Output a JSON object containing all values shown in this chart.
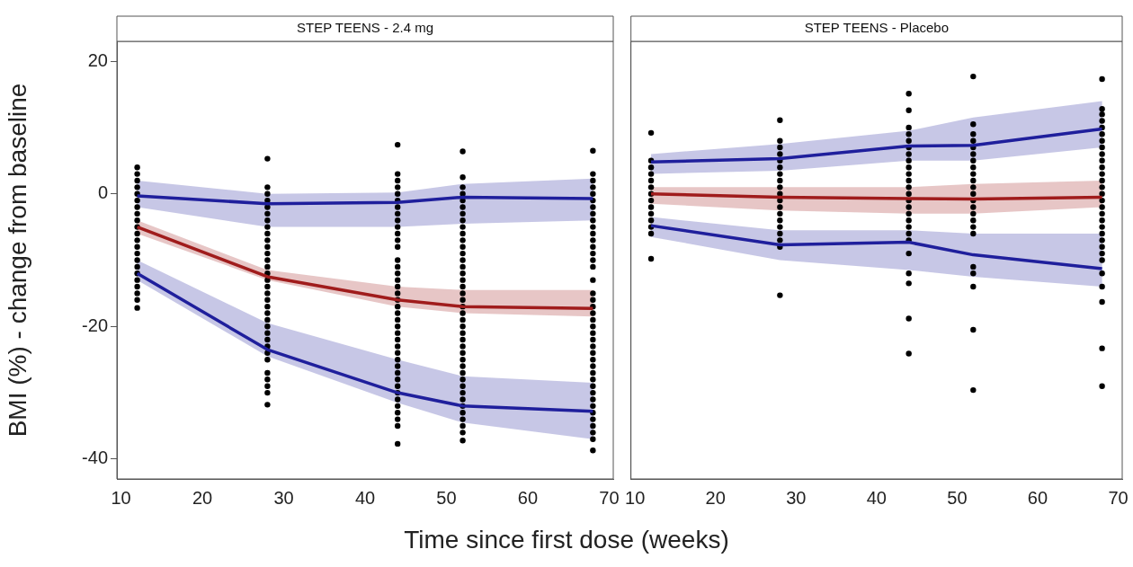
{
  "chart_data": [
    {
      "type": "line",
      "title": "STEP TEENS - 2.4 mg",
      "xlabel": "Time since first dose (weeks)",
      "ylabel": "BMI (%) - change from baseline",
      "xlim": [
        9.5,
        70.5
      ],
      "xticks": [
        10,
        20,
        30,
        40,
        50,
        60,
        70
      ],
      "ylim": [
        -43,
        23
      ],
      "yticks": [
        -40,
        -20,
        0,
        20
      ],
      "grid": false,
      "legend": false,
      "series": [
        {
          "type": "scatter",
          "marker": "circle",
          "color": "#000000",
          "x": [
            12,
            12,
            12,
            12,
            12,
            12,
            12,
            12,
            12,
            12,
            12,
            12,
            12,
            12,
            12,
            12,
            12,
            12,
            12,
            12,
            12,
            12,
            28,
            28,
            28,
            28,
            28,
            28,
            28,
            28,
            28,
            28,
            28,
            28,
            28,
            28,
            28,
            28,
            28,
            28,
            28,
            28,
            28,
            28,
            28,
            28,
            28,
            28,
            28,
            28,
            28,
            28,
            28,
            28,
            28,
            44,
            44,
            44,
            44,
            44,
            44,
            44,
            44,
            44,
            44,
            44,
            44,
            44,
            44,
            44,
            44,
            44,
            44,
            44,
            44,
            44,
            44,
            44,
            44,
            44,
            44,
            44,
            44,
            44,
            44,
            44,
            44,
            44,
            44,
            44,
            44,
            44,
            44,
            44,
            44,
            52,
            52,
            52,
            52,
            52,
            52,
            52,
            52,
            52,
            52,
            52,
            52,
            52,
            52,
            52,
            52,
            52,
            52,
            52,
            52,
            52,
            52,
            52,
            52,
            52,
            52,
            52,
            52,
            52,
            52,
            52,
            52,
            52,
            52,
            52,
            52,
            52,
            52,
            52,
            52,
            52,
            68,
            68,
            68,
            68,
            68,
            68,
            68,
            68,
            68,
            68,
            68,
            68,
            68,
            68,
            68,
            68,
            68,
            68,
            68,
            68,
            68,
            68,
            68,
            68,
            68,
            68,
            68,
            68,
            68,
            68,
            68,
            68,
            68,
            68,
            68,
            68,
            68,
            68,
            68,
            68,
            68
          ],
          "values": [
            4,
            3,
            2,
            1,
            0,
            -1,
            -2,
            -3,
            -4,
            -5,
            -6,
            -7,
            -8,
            -9,
            -10,
            -11,
            -12,
            -13,
            -14,
            -15,
            -16,
            -17.2,
            5.3,
            1,
            0,
            -1,
            -2,
            -3,
            -4,
            -5,
            -6,
            -7,
            -8,
            -9,
            -10,
            -11,
            -12,
            -13,
            -14,
            -15,
            -16,
            -17,
            -18,
            -19,
            -20,
            -21,
            -22,
            -23,
            -24,
            -25,
            -27,
            -28,
            -29,
            -30,
            -31.8,
            7.4,
            3,
            2,
            1,
            0,
            -1,
            -2,
            -3,
            -4,
            -5,
            -6,
            -7,
            -8,
            -10,
            -11,
            -12,
            -13,
            -14,
            -15,
            -16,
            -17,
            -18,
            -19,
            -20,
            -21,
            -22,
            -23,
            -24,
            -25,
            -26,
            -27,
            -28,
            -29,
            -30,
            -31,
            -32,
            -33,
            -34,
            -35,
            -37.7,
            6.4,
            2.5,
            1,
            0,
            -1,
            -2,
            -3,
            -4,
            -5,
            -6,
            -7,
            -8,
            -9,
            -10,
            -11,
            -12,
            -13,
            -14,
            -15,
            -16,
            -17,
            -18,
            -19,
            -20,
            -21,
            -22,
            -23,
            -24,
            -25,
            -26,
            -27,
            -28,
            -29,
            -30,
            -31,
            -32,
            -33,
            -34,
            -35,
            -36,
            -37.2,
            6.5,
            3,
            2,
            1,
            0,
            -1,
            -2,
            -3,
            -4,
            -5,
            -6,
            -7,
            -8,
            -9,
            -10,
            -11,
            -13,
            -15,
            -16,
            -17,
            -18,
            -19,
            -20,
            -21,
            -22,
            -23,
            -24,
            -25,
            -26,
            -27,
            -28,
            -29,
            -30,
            -31,
            -32,
            -33,
            -34,
            -35,
            -36,
            -37,
            -38.7
          ]
        },
        {
          "type": "line",
          "marker": "none",
          "color": "#1f1f9c",
          "x": [
            12,
            28,
            44,
            52,
            68
          ],
          "values": [
            -0.3,
            -1.5,
            -1.3,
            -0.5,
            -0.7
          ],
          "lower": [
            -2,
            -5,
            -5,
            -4.5,
            -4
          ],
          "upper": [
            2,
            0,
            0.2,
            1.5,
            2.3
          ]
        },
        {
          "type": "line",
          "marker": "none",
          "color": "#a01c1c",
          "x": [
            12,
            28,
            44,
            52,
            68
          ],
          "values": [
            -5,
            -12.5,
            -16,
            -17,
            -17.3
          ],
          "lower": [
            -6,
            -13,
            -17,
            -18,
            -18.5
          ],
          "upper": [
            -4,
            -11.5,
            -14,
            -14.5,
            -14.5
          ]
        },
        {
          "type": "line",
          "marker": "none",
          "color": "#1f1f9c",
          "x": [
            12,
            28,
            44,
            52,
            68
          ],
          "values": [
            -12,
            -23.5,
            -30,
            -32,
            -32.8
          ],
          "lower": [
            -13,
            -24.5,
            -31.5,
            -34.5,
            -37
          ],
          "upper": [
            -10,
            -19.5,
            -25,
            -27.5,
            -28.5
          ]
        }
      ]
    },
    {
      "type": "line",
      "title": "STEP TEENS - Placebo",
      "xlim": [
        9.5,
        70.5
      ],
      "xticks": [
        10,
        20,
        30,
        40,
        50,
        60,
        70
      ],
      "ylim": [
        -43,
        23
      ],
      "yticks": [
        -40,
        -20,
        0,
        20
      ],
      "tick_labels": "x",
      "grid": false,
      "legend": false,
      "series": [
        {
          "type": "scatter",
          "marker": "circle",
          "color": "#000000",
          "x": [
            12,
            12,
            12,
            12,
            12,
            12,
            12,
            12,
            12,
            12,
            12,
            12,
            12,
            12,
            28,
            28,
            28,
            28,
            28,
            28,
            28,
            28,
            28,
            28,
            28,
            28,
            28,
            28,
            28,
            28,
            28,
            28,
            28,
            44,
            44,
            44,
            44,
            44,
            44,
            44,
            44,
            44,
            44,
            44,
            44,
            44,
            44,
            44,
            44,
            44,
            44,
            44,
            44,
            44,
            44,
            44,
            44,
            44,
            52,
            52,
            52,
            52,
            52,
            52,
            52,
            52,
            52,
            52,
            52,
            52,
            52,
            52,
            52,
            52,
            52,
            52,
            52,
            52,
            52,
            52,
            52,
            68,
            68,
            68,
            68,
            68,
            68,
            68,
            68,
            68,
            68,
            68,
            68,
            68,
            68,
            68,
            68,
            68,
            68,
            68,
            68,
            68,
            68,
            68,
            68,
            68,
            68,
            68,
            68,
            68,
            68
          ],
          "values": [
            9.2,
            5,
            4,
            3,
            2,
            1,
            0,
            -1,
            -2,
            -3,
            -4,
            -5,
            -6,
            -9.8,
            11.1,
            8,
            7,
            6,
            5,
            4,
            3,
            2,
            1,
            0,
            -1,
            -2,
            -3,
            -4,
            -5,
            -6,
            -7,
            -8,
            -15.3,
            15.1,
            12.6,
            10,
            9,
            8,
            7,
            6,
            5,
            4,
            3,
            2,
            1,
            0,
            -1,
            -2,
            -3,
            -4,
            -5,
            -6,
            -7,
            -9,
            -12,
            -13.5,
            -18.8,
            -24.1,
            17.7,
            10.5,
            9,
            8,
            7,
            6,
            5,
            4,
            3,
            2,
            1,
            0,
            -1,
            -2,
            -3,
            -4,
            -5,
            -6,
            -11,
            -12,
            -14,
            -20.5,
            -29.6,
            17.3,
            12.8,
            12,
            11,
            10,
            9,
            8,
            7,
            6,
            5,
            4,
            3,
            2,
            1,
            0,
            -1,
            -2,
            -3,
            -4,
            -5,
            -6,
            -7,
            -8,
            -9,
            -10,
            -12,
            -14,
            -16.3,
            -23.3,
            -29
          ]
        },
        {
          "type": "line",
          "marker": "none",
          "color": "#1f1f9c",
          "x": [
            12,
            28,
            44,
            52,
            68
          ],
          "values": [
            4.8,
            5.3,
            7.2,
            7.3,
            9.8
          ],
          "lower": [
            3,
            3.5,
            5,
            5,
            7
          ],
          "upper": [
            6,
            7.5,
            9.5,
            11.5,
            14
          ]
        },
        {
          "type": "line",
          "marker": "none",
          "color": "#a01c1c",
          "x": [
            12,
            28,
            44,
            52,
            68
          ],
          "values": [
            0,
            -0.5,
            -0.7,
            -0.8,
            -0.5
          ],
          "lower": [
            -1.5,
            -2.5,
            -3,
            -3,
            -2
          ],
          "upper": [
            1,
            1,
            1,
            1.5,
            2
          ]
        },
        {
          "type": "line",
          "marker": "none",
          "color": "#1f1f9c",
          "x": [
            12,
            28,
            44,
            52,
            68
          ],
          "values": [
            -4.8,
            -7.7,
            -7.3,
            -9.2,
            -11.3
          ],
          "lower": [
            -6.5,
            -10,
            -11.5,
            -12.5,
            -14
          ],
          "upper": [
            -3.5,
            -5.5,
            -5.5,
            -6,
            -6
          ]
        }
      ]
    }
  ]
}
